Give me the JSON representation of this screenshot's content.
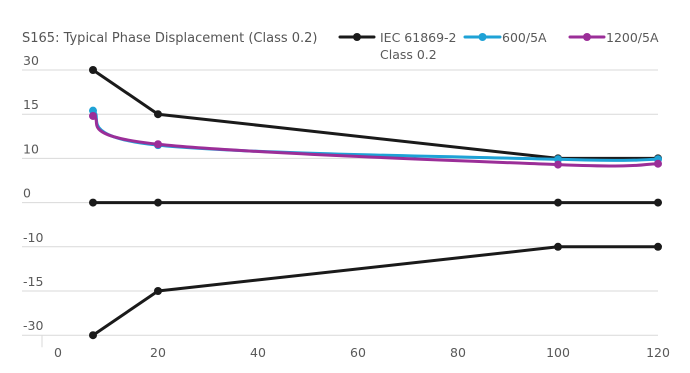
{
  "chart_data": {
    "type": "line",
    "title": "S165: Typical Phase Displacement (Class 0.2)",
    "xlabel": "",
    "ylabel": "",
    "x_ticks": [
      "0",
      "20",
      "40",
      "60",
      "80",
      "100",
      "120"
    ],
    "y_ticks": [
      "30",
      "15",
      "10",
      "0",
      "-10",
      "-15",
      "-30"
    ],
    "legend_position": "top-right",
    "grid": "horizontal",
    "colors": {
      "background": "#ffffff",
      "grid": "#d9d9d9",
      "axis_text": "#595959"
    },
    "series": [
      {
        "name": "IEC 61869-2 Class 0.2",
        "legend_lines": [
          "IEC 61869-2",
          "Class 0.2"
        ],
        "color": "#1a1a1a",
        "smooth": false,
        "points": [
          {
            "x": 7,
            "y": 30
          },
          {
            "x": 20,
            "y": 15
          },
          {
            "x": 100,
            "y": 10
          },
          {
            "x": 120,
            "y": 10
          }
        ]
      },
      {
        "name": "IEC 61869-2 Class 0.2 (zero)",
        "legend_lines": [],
        "color": "#1a1a1a",
        "smooth": false,
        "points": [
          {
            "x": 7,
            "y": 0
          },
          {
            "x": 20,
            "y": 0
          },
          {
            "x": 100,
            "y": 0
          },
          {
            "x": 120,
            "y": 0
          }
        ]
      },
      {
        "name": "IEC 61869-2 Class 0.2 (lower)",
        "legend_lines": [],
        "color": "#1a1a1a",
        "smooth": false,
        "points": [
          {
            "x": 7,
            "y": -30
          },
          {
            "x": 20,
            "y": -15
          },
          {
            "x": 100,
            "y": -10
          },
          {
            "x": 120,
            "y": -10
          }
        ]
      },
      {
        "name": "600/5A",
        "legend_lines": [
          "600/5A"
        ],
        "color": "#1ea2d6",
        "smooth": true,
        "points": [
          {
            "x": 7,
            "y": 16.2
          },
          {
            "x": 20,
            "y": 11.5
          },
          {
            "x": 100,
            "y": 9.8
          },
          {
            "x": 120,
            "y": 9.8
          }
        ]
      },
      {
        "name": "1200/5A",
        "legend_lines": [
          "1200/5A"
        ],
        "color": "#9b2e98",
        "smooth": true,
        "points": [
          {
            "x": 7,
            "y": 14.8
          },
          {
            "x": 20,
            "y": 11.6
          },
          {
            "x": 100,
            "y": 8.6
          },
          {
            "x": 120,
            "y": 8.8
          }
        ]
      }
    ]
  }
}
